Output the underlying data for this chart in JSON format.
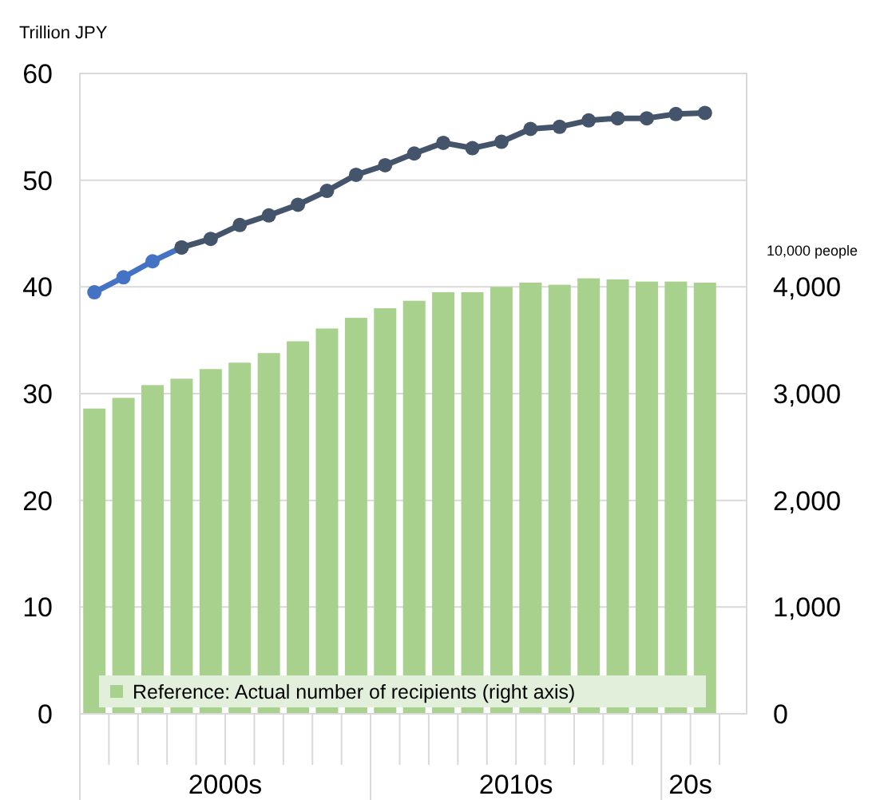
{
  "chart_data": {
    "type": "bar",
    "ylabel": "Trillion JPY",
    "y2label": "10,000 people",
    "categories": [
      null,
      null,
      null,
      null,
      null,
      null,
      null,
      null,
      null,
      null,
      null,
      null,
      null,
      null,
      null,
      null,
      null,
      null,
      null,
      null,
      null,
      null,
      null
    ],
    "series": [
      {
        "name": "Reference:  Actual number of recipients (right axis)",
        "axis": "y2",
        "color": "#a9d18e",
        "values": [
          2860,
          2960,
          3080,
          3140,
          3230,
          3290,
          3380,
          3490,
          3610,
          3710,
          3800,
          3870,
          3950,
          3950,
          4000,
          4040,
          4020,
          4080,
          4070,
          4050,
          4050,
          4040,
          null
        ]
      },
      {
        "type": "line",
        "color": "#4472c4",
        "values": [
          39.5,
          40.9,
          42.4,
          43.7,
          null,
          null,
          null,
          null,
          null,
          null,
          null,
          null,
          null,
          null,
          null,
          null,
          null,
          null,
          null,
          null,
          null,
          null,
          null
        ]
      },
      {
        "type": "line",
        "color": "#44546a",
        "values": [
          null,
          null,
          null,
          43.7,
          44.5,
          45.8,
          46.7,
          47.7,
          49.0,
          50.5,
          51.4,
          52.5,
          53.5,
          53.0,
          53.6,
          54.8,
          55.0,
          55.6,
          55.8,
          55.8,
          56.2,
          56.3,
          null
        ]
      }
    ],
    "ylim": [
      0,
      60
    ],
    "yticks": [
      0,
      10,
      20,
      30,
      40,
      50,
      60
    ],
    "y2lim": [
      0,
      6000
    ],
    "y2ticks": [
      {
        "value": 0,
        "label": "0"
      },
      {
        "value": 1000,
        "label": "1,000"
      },
      {
        "value": 2000,
        "label": "2,000"
      },
      {
        "value": 3000,
        "label": "3,000"
      },
      {
        "value": 4000,
        "label": "4,000"
      }
    ],
    "grid": "y",
    "legend": "bottom",
    "marker": "circle",
    "line_style": "solid",
    "annotations": [
      "2000s",
      "2010s",
      "20s"
    ]
  }
}
